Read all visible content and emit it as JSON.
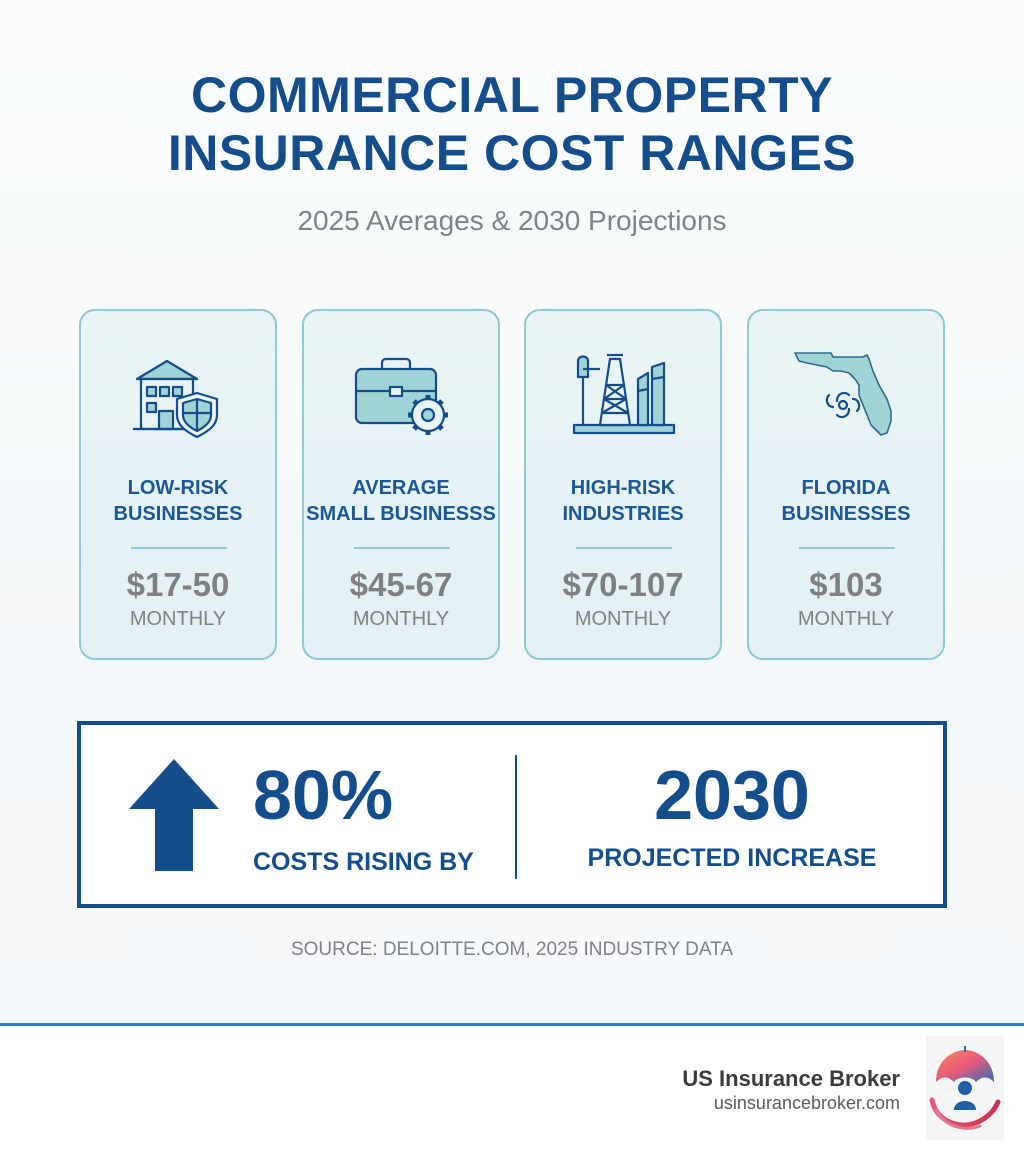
{
  "header": {
    "title_line1": "COMMERCIAL PROPERTY",
    "title_line2": "INSURANCE COST RANGES",
    "subtitle": "2025 Averages & 2030 Projections"
  },
  "cards": [
    {
      "icon": "building-shield-icon",
      "category_line1": "LOW-RISK",
      "category_line2": "BUSINESSES",
      "price": "$17-50",
      "period": "MONTHLY"
    },
    {
      "icon": "briefcase-gear-icon",
      "category_line1": "AVERAGE",
      "category_line2": "SMALL BUSINESSS",
      "price": "$45-67",
      "period": "MONTHLY"
    },
    {
      "icon": "oil-rig-factory-icon",
      "category_line1": "HIGH-RISK",
      "category_line2": "INDUSTRIES",
      "price": "$70-107",
      "period": "MONTHLY"
    },
    {
      "icon": "florida-hurricane-icon",
      "category_line1": "FLORIDA",
      "category_line2": "BUSINESSES",
      "price": "$103",
      "period": "MONTHLY"
    }
  ],
  "stats": {
    "arrow_icon": "up-arrow-icon",
    "left_value": "80%",
    "left_label": "COSTS RISING BY",
    "right_value": "2030",
    "right_label": "PROJECTED INCREASE"
  },
  "source": "SOURCE: DELOITTE.COM, 2025 INDUSTRY DATA",
  "footer": {
    "brand_name": "US Insurance Broker",
    "brand_url": "usinsurancebroker.com",
    "logo_icon": "umbrella-person-logo-icon"
  },
  "colors": {
    "primary_navy": "#134d8c",
    "card_border": "#8ccbd1",
    "card_fill": "#e6f2f5",
    "icon_teal": "#9fd3d6",
    "text_gray": "#808285",
    "footer_rule": "#2f7cc0"
  }
}
